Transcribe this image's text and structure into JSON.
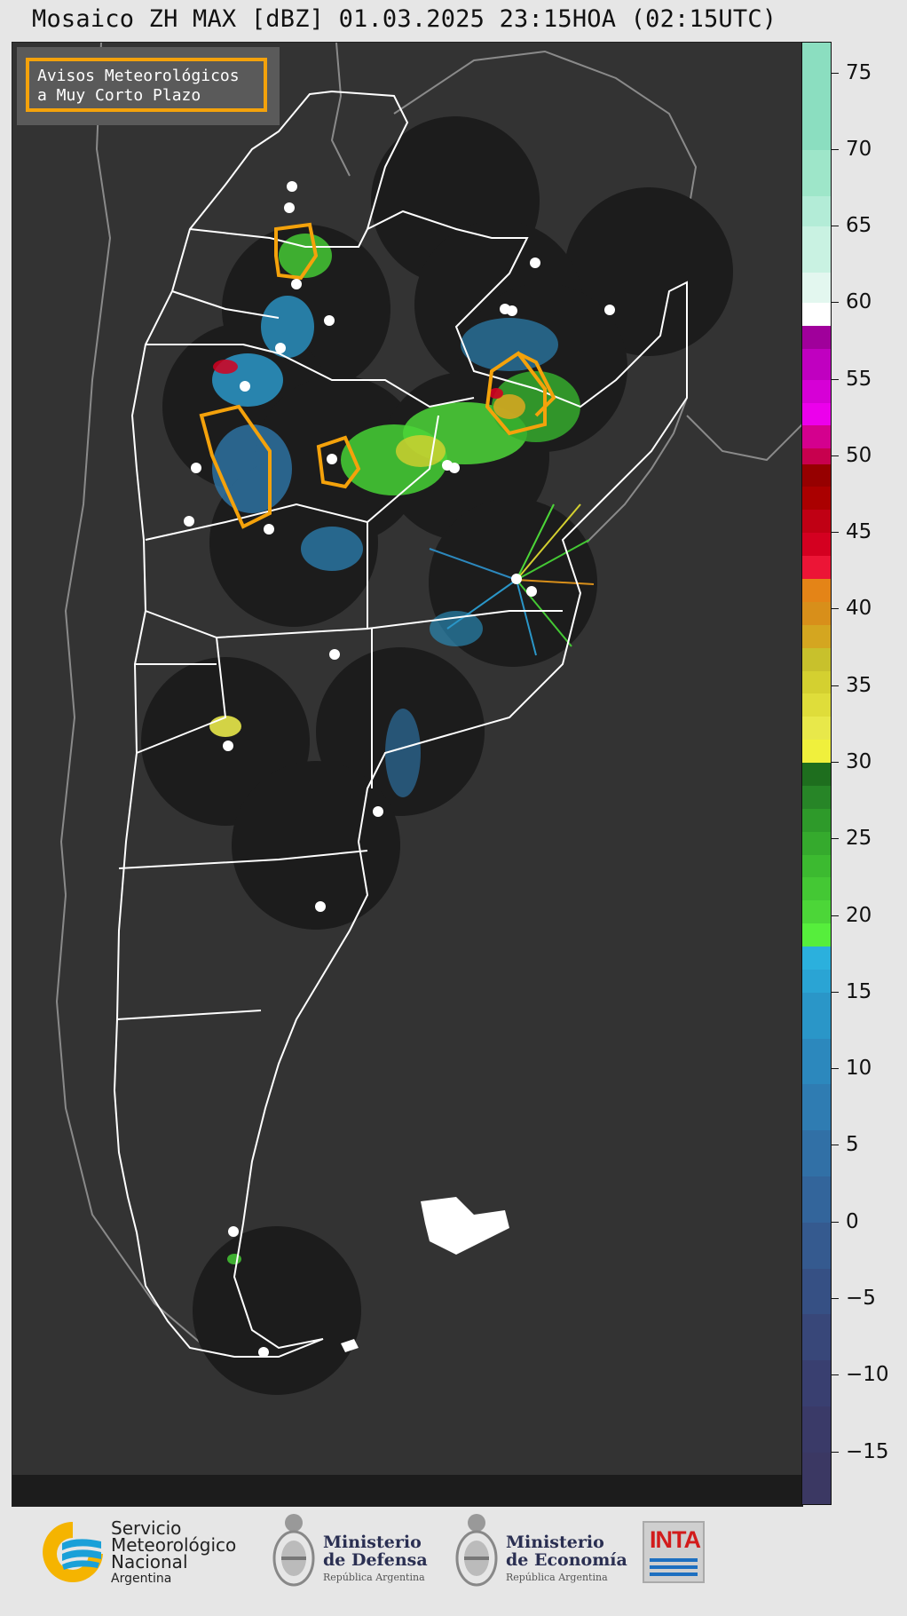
{
  "title": "Mosaico ZH MAX [dBZ] 01.03.2025 23:15HOA (02:15UTC)",
  "warning_legend": {
    "line1": "Avisos Meteorológicos",
    "line2": "a Muy Corto Plazo",
    "border_color": "#f4a20b"
  },
  "colorbar": {
    "unit": "dBZ",
    "min": -18.5,
    "max": 77,
    "ticks": [
      75,
      70,
      65,
      60,
      55,
      50,
      45,
      40,
      35,
      30,
      25,
      20,
      15,
      10,
      5,
      0,
      "−5",
      "−10",
      "−15"
    ],
    "segments": [
      {
        "from": 75,
        "to": 77,
        "color": "#8bdec0"
      },
      {
        "from": 70,
        "to": 75,
        "color": "#8bdec0"
      },
      {
        "from": 67,
        "to": 70,
        "color": "#9ee6c9"
      },
      {
        "from": 65,
        "to": 67,
        "color": "#b3ecd7"
      },
      {
        "from": 62,
        "to": 65,
        "color": "#c9f2e2"
      },
      {
        "from": 60,
        "to": 62,
        "color": "#e3f7ef"
      },
      {
        "from": 58.5,
        "to": 60,
        "color": "#ffffff"
      },
      {
        "from": 57,
        "to": 58.5,
        "color": "#a0009b"
      },
      {
        "from": 55,
        "to": 57,
        "color": "#c000c0"
      },
      {
        "from": 53.5,
        "to": 55,
        "color": "#d600d6"
      },
      {
        "from": 52,
        "to": 53.5,
        "color": "#ec00ec"
      },
      {
        "from": 50.5,
        "to": 52,
        "color": "#d4008e"
      },
      {
        "from": 49.5,
        "to": 50.5,
        "color": "#c8004e"
      },
      {
        "from": 48,
        "to": 49.5,
        "color": "#960000"
      },
      {
        "from": 46.5,
        "to": 48,
        "color": "#aa0000"
      },
      {
        "from": 45,
        "to": 46.5,
        "color": "#c00014"
      },
      {
        "from": 43.5,
        "to": 45,
        "color": "#d40020"
      },
      {
        "from": 42,
        "to": 43.5,
        "color": "#ec1536"
      },
      {
        "from": 40.5,
        "to": 42,
        "color": "#e48417"
      },
      {
        "from": 39,
        "to": 40.5,
        "color": "#d88f1a"
      },
      {
        "from": 37.5,
        "to": 39,
        "color": "#d4a620"
      },
      {
        "from": 36,
        "to": 37.5,
        "color": "#c8c12c"
      },
      {
        "from": 34.5,
        "to": 36,
        "color": "#d4d030"
      },
      {
        "from": 33,
        "to": 34.5,
        "color": "#dfdd3a"
      },
      {
        "from": 31.5,
        "to": 33,
        "color": "#e8e84a"
      },
      {
        "from": 30,
        "to": 31.5,
        "color": "#f0f03c"
      },
      {
        "from": 28.5,
        "to": 30,
        "color": "#1e6e1e"
      },
      {
        "from": 27,
        "to": 28.5,
        "color": "#278527"
      },
      {
        "from": 25.5,
        "to": 27,
        "color": "#2e9a2a"
      },
      {
        "from": 24,
        "to": 25.5,
        "color": "#35aa2d"
      },
      {
        "from": 22.5,
        "to": 24,
        "color": "#3cba30"
      },
      {
        "from": 21,
        "to": 22.5,
        "color": "#44c834"
      },
      {
        "from": 19.5,
        "to": 21,
        "color": "#4cd638"
      },
      {
        "from": 18,
        "to": 19.5,
        "color": "#56ee3c"
      },
      {
        "from": 16.5,
        "to": 18,
        "color": "#2bb0dd"
      },
      {
        "from": 15,
        "to": 16.5,
        "color": "#2aa4d4"
      },
      {
        "from": 12,
        "to": 15,
        "color": "#2a96c8"
      },
      {
        "from": 9,
        "to": 12,
        "color": "#2c88bd"
      },
      {
        "from": 6,
        "to": 9,
        "color": "#2f7cb2"
      },
      {
        "from": 3,
        "to": 6,
        "color": "#3170a6"
      },
      {
        "from": 0,
        "to": 3,
        "color": "#33659b"
      },
      {
        "from": -3,
        "to": 0,
        "color": "#355a8f"
      },
      {
        "from": -6,
        "to": -3,
        "color": "#365084"
      },
      {
        "from": -9,
        "to": -6,
        "color": "#384779"
      },
      {
        "from": -12,
        "to": -9,
        "color": "#393f70"
      },
      {
        "from": -15,
        "to": -12,
        "color": "#3a3a68"
      },
      {
        "from": -18.5,
        "to": -15,
        "color": "#3b3863"
      }
    ]
  },
  "colors": {
    "background": "#e6e6e6",
    "map_ocean": "#333333",
    "radar_disc": "#1c1c1c",
    "borders": "#ffffff",
    "neighbor_borders": "#8a8a8a",
    "warning": "#f4a20b",
    "radar_site": "#ffffff"
  },
  "logos": {
    "smn_line1": "Servicio",
    "smn_line2": "Meteorológico",
    "smn_line3": "Nacional",
    "smn_line4": "Argentina",
    "defensa_line1": "Ministerio",
    "defensa_line2": "de Defensa",
    "defensa_line3": "República Argentina",
    "economia_line1": "Ministerio",
    "economia_line2": "de Economía",
    "economia_line3": "República Argentina",
    "inta": "INTA"
  }
}
